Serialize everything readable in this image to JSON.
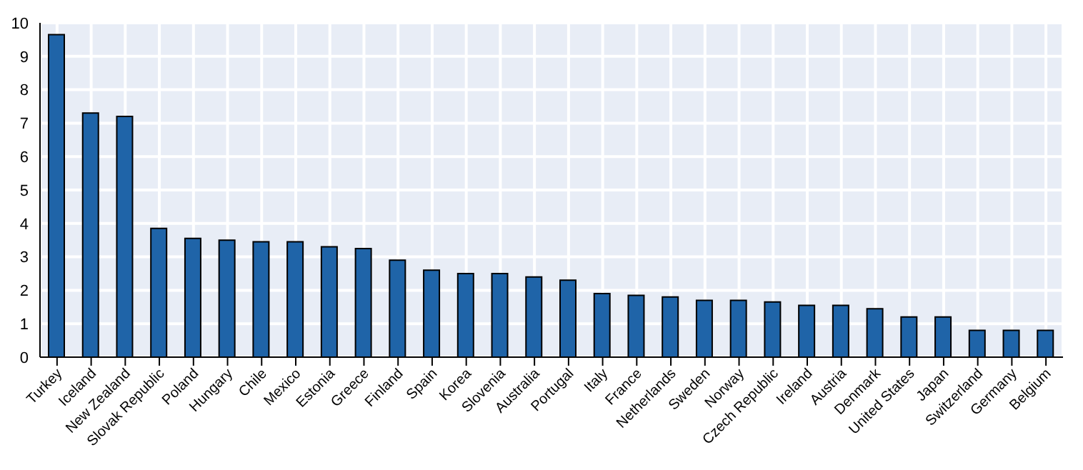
{
  "chart_data": {
    "type": "bar",
    "categories": [
      "Turkey",
      "Iceland",
      "New Zealand",
      "Slovak Republic",
      "Poland",
      "Hungary",
      "Chile",
      "Mexico",
      "Estonia",
      "Greece",
      "Finland",
      "Spain",
      "Korea",
      "Slovenia",
      "Australia",
      "Portugal",
      "Italy",
      "France",
      "Netherlands",
      "Sweden",
      "Norway",
      "Czech Republic",
      "Ireland",
      "Austria",
      "Denmark",
      "United States",
      "Japan",
      "Switzerland",
      "Germany",
      "Belgium"
    ],
    "values": [
      9.65,
      7.3,
      7.2,
      3.85,
      3.55,
      3.5,
      3.45,
      3.45,
      3.3,
      3.25,
      2.9,
      2.6,
      2.5,
      2.5,
      2.4,
      2.3,
      1.9,
      1.85,
      1.8,
      1.7,
      1.7,
      1.65,
      1.55,
      1.55,
      1.45,
      1.2,
      1.2,
      0.8,
      0.8,
      0.8
    ],
    "color": "#1f64a8",
    "ylim": [
      0,
      10
    ],
    "yticks": [
      0,
      1,
      2,
      3,
      4,
      5,
      6,
      7,
      8,
      9,
      10
    ],
    "grid": true
  }
}
